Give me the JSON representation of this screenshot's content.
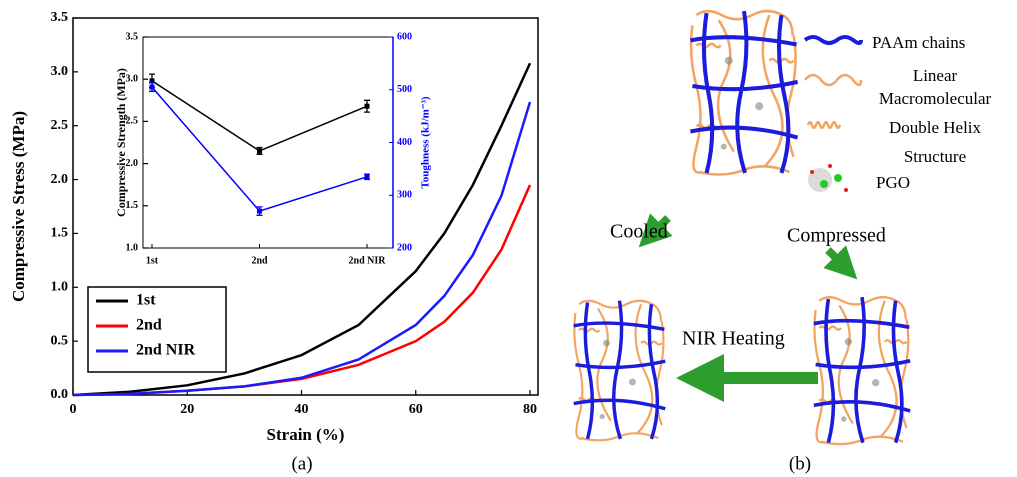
{
  "chart_data": [
    {
      "type": "line",
      "xlabel": "Strain (%)",
      "ylabel": "Compressive Stress (MPa)",
      "x": [
        0,
        10,
        20,
        30,
        40,
        50,
        60,
        65,
        70,
        75,
        80
      ],
      "xlim": [
        0,
        81.4
      ],
      "xticks": [
        0,
        20,
        40,
        60,
        80
      ],
      "ylim": [
        0,
        3.5
      ],
      "yticks": [
        {
          "value": 0,
          "label": "0.0"
        },
        0.5,
        {
          "value": 1,
          "label": "1.0"
        },
        1.5,
        {
          "value": 2,
          "label": "2.0"
        },
        2.5,
        {
          "value": 3,
          "label": "3.0"
        },
        3.5
      ],
      "legend": "lower left",
      "series": [
        {
          "name": "1st",
          "color": "#000000",
          "values": [
            0,
            0.03,
            0.09,
            0.2,
            0.37,
            0.65,
            1.15,
            1.5,
            1.95,
            2.5,
            3.08
          ]
        },
        {
          "name": "2nd",
          "color": "#ff0000",
          "values": [
            0,
            0.01,
            0.04,
            0.08,
            0.15,
            0.28,
            0.5,
            0.68,
            0.95,
            1.35,
            1.95
          ]
        },
        {
          "name": "2nd NIR",
          "color": "#1a1aff",
          "values": [
            0,
            0.01,
            0.04,
            0.08,
            0.16,
            0.33,
            0.65,
            0.92,
            1.3,
            1.85,
            2.72
          ]
        }
      ]
    },
    {
      "type": "line",
      "categories": [
        "1st",
        "2nd",
        "2nd NIR"
      ],
      "ylabel": "Compressive Strength (MPa)",
      "y2label": "Toughness (kJ/m⁻³)",
      "ylim": [
        1,
        3.5
      ],
      "yticks": [
        {
          "value": 1,
          "label": "1.0"
        },
        1.5,
        {
          "value": 2,
          "label": "2.0"
        },
        2.5,
        {
          "value": 3,
          "label": "3.0"
        },
        3.5
      ],
      "y2lim": [
        200,
        600
      ],
      "y2ticks": [
        200,
        300,
        400,
        500,
        600
      ],
      "series": [
        {
          "color": "#000000",
          "values": [
            2.98,
            2.15,
            2.68
          ],
          "errors": [
            0.08,
            0.04,
            0.07
          ]
        },
        {
          "color": "#0000ff",
          "axis": "y2",
          "values": [
            505,
            270,
            335
          ],
          "errors": [
            8,
            8,
            5
          ]
        }
      ]
    }
  ],
  "diagram": {
    "legend": [
      {
        "lines": [
          "PAAm chains"
        ]
      },
      {
        "lines": [
          "Linear",
          "Macromolecular"
        ]
      },
      {
        "lines": [
          "Double Helix",
          "Structure"
        ]
      },
      {
        "lines": [
          "PGO"
        ]
      }
    ],
    "steps": {
      "cooled": "Cooled",
      "compressed": "Compressed",
      "heating": "NIR Heating"
    }
  },
  "captions": [
    "(a)",
    "(b)"
  ]
}
